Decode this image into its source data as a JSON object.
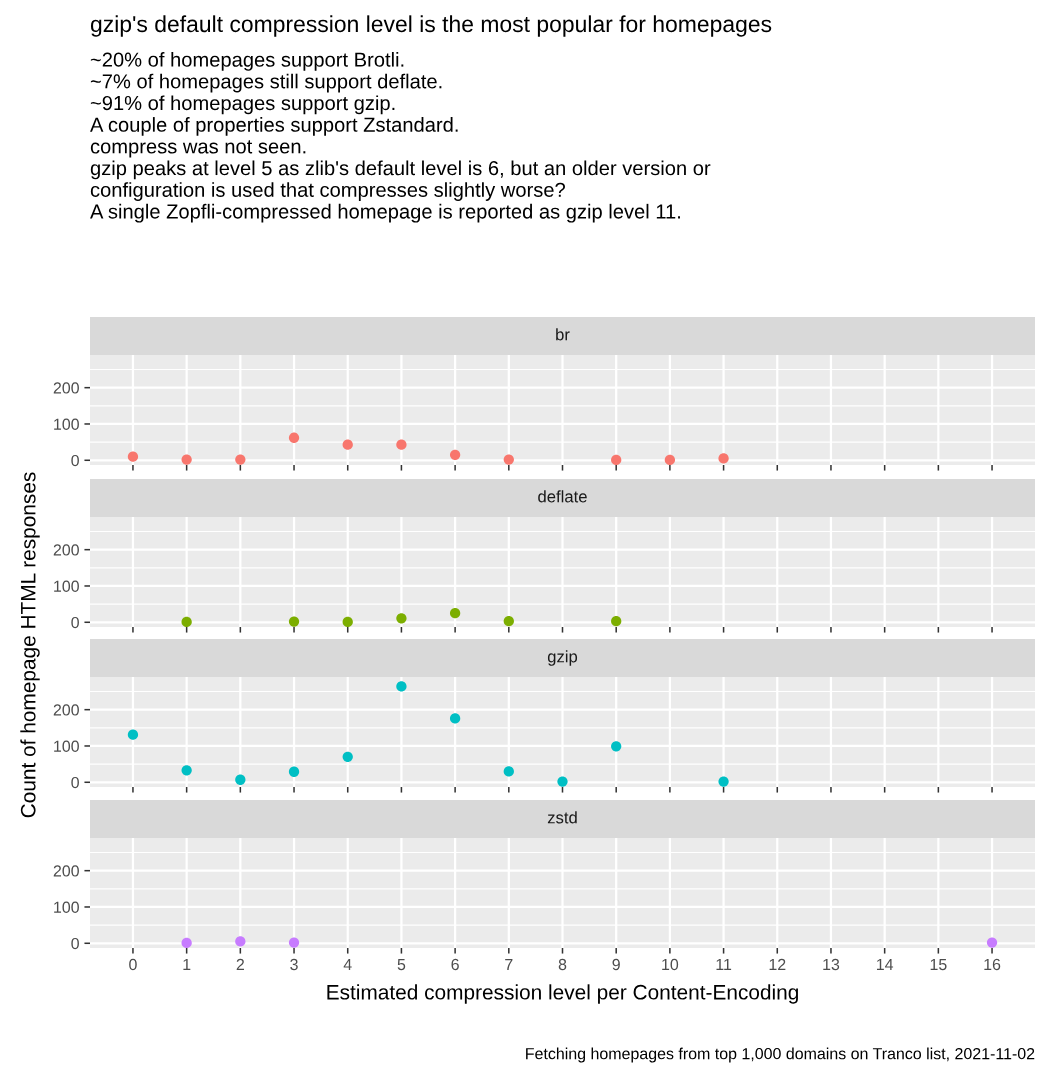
{
  "chart_data": [
    {
      "type": "scatter",
      "title": "gzip's default compression level is the most popular for homepages",
      "subtitle": "~20% of homepages support Brotli.\n~7% of homepages still support deflate.\n~91% of homepages support gzip.\nA couple of properties support Zstandard.\ncompress was not seen.\ngzip peaks at level 5 as zlib's default level is 6, but an older version or\nconfiguration is used that compresses slightly worse?\nA single Zopfli-compressed homepage is reported as gzip level 11.",
      "ylabel": "Count of homepage HTML responses",
      "legend_title": "br",
      "x": [
        0,
        1,
        2,
        3,
        4,
        5,
        6,
        7,
        9,
        10,
        11
      ],
      "values": [
        10,
        2,
        2,
        62,
        43,
        43,
        15,
        2,
        1,
        1,
        5
      ],
      "color": "#f8766d",
      "xlim": [
        -0.8,
        16.8
      ],
      "ylim": [
        -13,
        290
      ],
      "yticks": [
        0,
        100,
        200
      ],
      "xticks": [
        0,
        1,
        2,
        3,
        4,
        5,
        6,
        7,
        8,
        9,
        10,
        11,
        12,
        13,
        14,
        15,
        16
      ],
      "grid": true,
      "marker": "circle",
      "tick_labels": "y"
    },
    {
      "type": "scatter",
      "legend_title": "deflate",
      "x": [
        1,
        3,
        4,
        5,
        6,
        7,
        9
      ],
      "values": [
        1,
        2,
        1,
        11,
        25,
        3,
        3
      ],
      "color": "#7cae00",
      "xlim": [
        -0.8,
        16.8
      ],
      "ylim": [
        -13,
        290
      ],
      "yticks": [
        0,
        100,
        200
      ],
      "xticks": [
        0,
        1,
        2,
        3,
        4,
        5,
        6,
        7,
        8,
        9,
        10,
        11,
        12,
        13,
        14,
        15,
        16
      ],
      "grid": true,
      "marker": "circle",
      "tick_labels": "y"
    },
    {
      "type": "scatter",
      "legend_title": "gzip",
      "x": [
        0,
        1,
        2,
        3,
        4,
        5,
        6,
        7,
        8,
        9,
        11
      ],
      "values": [
        131,
        33,
        7,
        29,
        70,
        264,
        176,
        30,
        2,
        99,
        2
      ],
      "color": "#00bfc4",
      "xlim": [
        -0.8,
        16.8
      ],
      "ylim": [
        -13,
        290
      ],
      "yticks": [
        0,
        100,
        200
      ],
      "xticks": [
        0,
        1,
        2,
        3,
        4,
        5,
        6,
        7,
        8,
        9,
        10,
        11,
        12,
        13,
        14,
        15,
        16
      ],
      "grid": true,
      "marker": "circle",
      "tick_labels": "y"
    },
    {
      "type": "scatter",
      "legend_title": "zstd",
      "xlabel": "Estimated compression level per Content-Encoding",
      "annotations": [
        "Fetching homepages from top 1,000 domains on Tranco list, 2021-11-02"
      ],
      "x": [
        1,
        2,
        3,
        16
      ],
      "values": [
        1,
        5,
        2,
        2
      ],
      "color": "#c77cff",
      "xlim": [
        -0.8,
        16.8
      ],
      "ylim": [
        -13,
        290
      ],
      "yticks": [
        0,
        100,
        200
      ],
      "xticks": [
        0,
        1,
        2,
        3,
        4,
        5,
        6,
        7,
        8,
        9,
        10,
        11,
        12,
        13,
        14,
        15,
        16
      ],
      "grid": true,
      "marker": "circle"
    }
  ]
}
